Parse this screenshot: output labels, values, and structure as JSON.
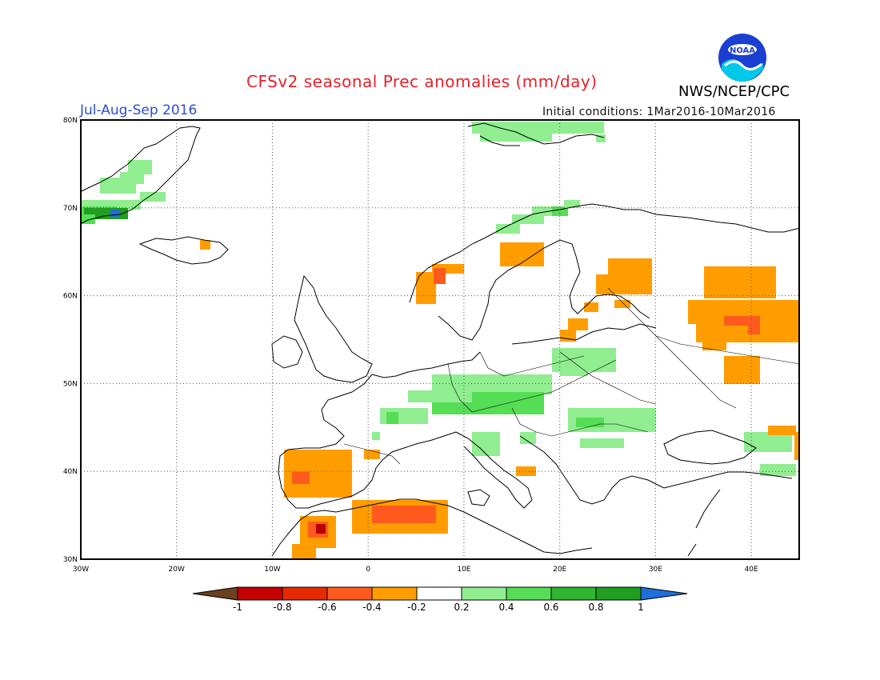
{
  "title": "CFSv2 seasonal Prec anomalies (mm/day)",
  "season": "Jul-Aug-Sep 2016",
  "initial_conditions": "Initial conditions: 1Mar2016-10Mar2016",
  "agency": "NWS/NCEP/CPC",
  "logo_text": "NOAA",
  "map": {
    "lon_range": [
      -30,
      45
    ],
    "lat_range": [
      30,
      80
    ],
    "lon_ticks": [
      "30W",
      "20W",
      "10W",
      "0",
      "10E",
      "20E",
      "30E",
      "40E"
    ],
    "lat_ticks": [
      "80N",
      "70N",
      "60N",
      "50N",
      "40N",
      "30N"
    ],
    "grid": "dotted"
  },
  "colorbar": {
    "labels": [
      "-1",
      "-0.8",
      "-0.6",
      "-0.4",
      "-0.2",
      "0.2",
      "0.4",
      "0.6",
      "0.8",
      "1"
    ],
    "colors": [
      "#6b3f1f",
      "#c40000",
      "#e52a00",
      "#ff5a1e",
      "#ff9d00",
      "#ffffff",
      "#90ee90",
      "#55dd55",
      "#2fb52f",
      "#1f9e1f",
      "#1e6fd9"
    ]
  },
  "colors": {
    "light_green": "#90ee90",
    "green": "#55dd55",
    "dark_green": "#1f9e1f",
    "blue": "#1e6fd9",
    "orange": "#ff9d00",
    "red_orange": "#ff5a1e",
    "red": "#e0201a",
    "dark_red": "#b80000"
  }
}
